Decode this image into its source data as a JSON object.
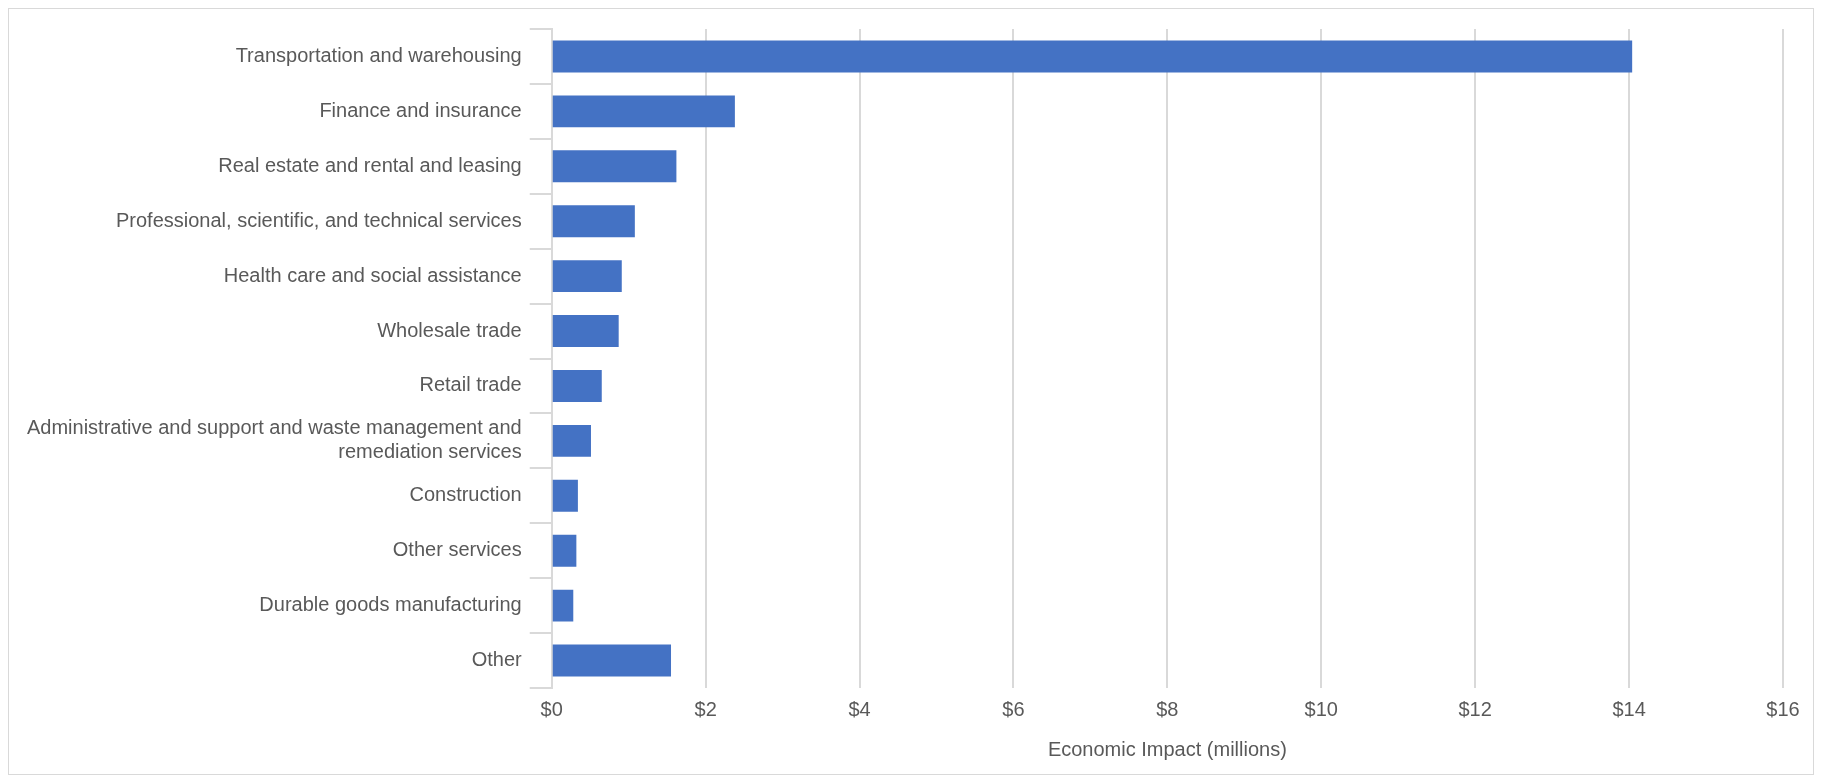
{
  "chart_data": {
    "type": "bar",
    "orientation": "horizontal",
    "xlabel": "Economic Impact (millions)",
    "categories": [
      "Transportation and warehousing",
      "Finance and insurance",
      "Real estate and rental and leasing",
      "Professional, scientific, and technical services",
      "Health care and social assistance",
      "Wholesale trade",
      "Retail trade",
      "Administrative and support and waste management and remediation services",
      "Construction",
      "Other services",
      "Durable goods manufacturing",
      "Other"
    ],
    "values": [
      14.04,
      2.38,
      1.62,
      1.08,
      0.91,
      0.87,
      0.65,
      0.51,
      0.34,
      0.32,
      0.28,
      1.55
    ],
    "color": "#4472c4",
    "xlim": [
      0,
      16
    ],
    "xticks": [
      {
        "value": 0,
        "label": "$0"
      },
      {
        "value": 2,
        "label": "$2"
      },
      {
        "value": 4,
        "label": "$4"
      },
      {
        "value": 6,
        "label": "$6"
      },
      {
        "value": 8,
        "label": "$8"
      },
      {
        "value": 10,
        "label": "$10"
      },
      {
        "value": 12,
        "label": "$12"
      },
      {
        "value": 14,
        "label": "$14"
      },
      {
        "value": 16,
        "label": "$16"
      }
    ],
    "grid": "x",
    "legend": false
  }
}
